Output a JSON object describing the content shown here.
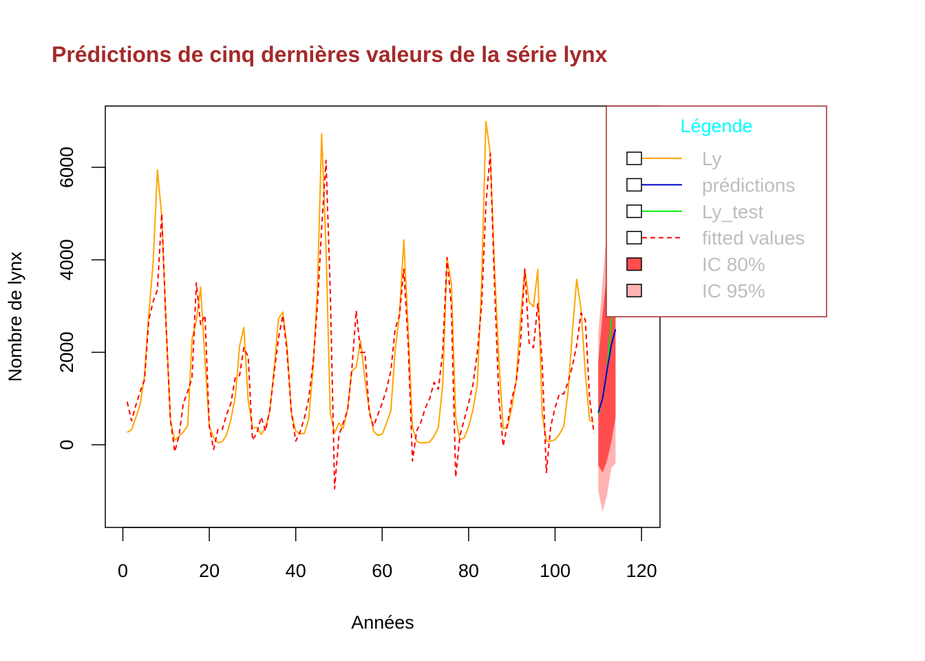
{
  "chart_data": {
    "type": "line",
    "title": "Prédictions de cinq dernières valeurs de la série lynx",
    "xlabel": "Années",
    "ylabel": "Nombre de lynx",
    "xlim": [
      0,
      125
    ],
    "ylim": [
      -1800,
      7300
    ],
    "xticks": [
      "0",
      "20",
      "40",
      "60",
      "80",
      "100",
      "120"
    ],
    "yticks": [
      "0",
      "2000",
      "4000",
      "6000"
    ],
    "grid": false,
    "legend_position": "top-right",
    "legend_title": "Légende",
    "colors": {
      "title": "#a52a2a",
      "ly": "#ffa500",
      "predictions": "#0000cd",
      "ly_test": "#00ee00",
      "fitted": "#ff0000",
      "ic80": "#ff4d4d",
      "ic95": "#ffb3b3",
      "legend_title": "#00ffff",
      "legend_text": "#bebebe",
      "legend_border": "#a52a2a"
    },
    "legend": [
      {
        "label": "Ly",
        "kind": "line",
        "color": "#ffa500",
        "dash": false
      },
      {
        "label": "prédictions",
        "kind": "line",
        "color": "#0000cd",
        "dash": false
      },
      {
        "label": "Ly_test",
        "kind": "line",
        "color": "#00ee00",
        "dash": false
      },
      {
        "label": "fitted values",
        "kind": "line",
        "color": "#ff0000",
        "dash": true
      },
      {
        "label": "IC 80%",
        "kind": "fill",
        "color": "#ff4d4d"
      },
      {
        "label": "IC 95%",
        "kind": "fill",
        "color": "#ffb3b3"
      }
    ],
    "series": [
      {
        "name": "Ly",
        "x_start": 1,
        "values": [
          269,
          321,
          585,
          871,
          1475,
          2821,
          3928,
          5943,
          4950,
          2577,
          523,
          98,
          184,
          279,
          409,
          2285,
          2685,
          3409,
          1824,
          409,
          151,
          45,
          68,
          213,
          546,
          1033,
          2129,
          2536,
          957,
          361,
          377,
          225,
          360,
          731,
          1638,
          2725,
          2871,
          2119,
          684,
          299,
          236,
          245,
          552,
          1623,
          3311,
          6721,
          4254,
          687,
          255,
          473,
          358,
          784,
          1594,
          1676,
          2251,
          1426,
          756,
          299,
          201,
          229,
          469,
          736,
          2042,
          2811,
          4431,
          2511,
          389,
          73,
          39,
          49,
          59,
          188,
          377,
          1292,
          4031,
          3495,
          587,
          105,
          153,
          387,
          758,
          1307,
          3465,
          6991,
          6313,
          3794,
          1836,
          345,
          382,
          808,
          1388,
          2713,
          3800,
          3091,
          2985,
          3790,
          674,
          81,
          80,
          108,
          229,
          399,
          1132,
          2432,
          3574,
          2935,
          1537,
          529,
          485
        ]
      },
      {
        "name": "fitted values",
        "x_start": 1,
        "values": [
          930,
          520,
          850,
          1150,
          1400,
          2700,
          3100,
          3350,
          5000,
          2600,
          550,
          -150,
          200,
          900,
          1150,
          1450,
          3500,
          2600,
          2800,
          400,
          -100,
          330,
          330,
          650,
          900,
          1450,
          1500,
          2100,
          1900,
          100,
          250,
          600,
          300,
          750,
          1550,
          2300,
          2800,
          2000,
          700,
          80,
          280,
          580,
          1000,
          1750,
          3000,
          4700,
          6150,
          3300,
          -950,
          200,
          480,
          750,
          1650,
          2900,
          2000,
          2000,
          700,
          400,
          650,
          900,
          1200,
          1600,
          2500,
          2800,
          3800,
          2200,
          -350,
          300,
          500,
          800,
          1000,
          1350,
          1200,
          2000,
          4050,
          3000,
          -700,
          200,
          550,
          900,
          1300,
          2000,
          3000,
          5200,
          6300,
          3400,
          1000,
          -30,
          450,
          1000,
          1350,
          2200,
          3800,
          2200,
          2100,
          3050,
          1800,
          -600,
          400,
          800,
          1100,
          1100,
          1350,
          1700,
          2150,
          2850,
          2700,
          1000,
          250
        ]
      },
      {
        "name": "Ly_test",
        "x_start": 110,
        "values": [
          662,
          1000,
          1590,
          2657,
          3396
        ]
      },
      {
        "name": "prédictions",
        "x_start": 110,
        "values": [
          700,
          1000,
          1600,
          2150,
          2500
        ]
      }
    ],
    "intervals": [
      {
        "name": "IC 95%",
        "x_start": 110,
        "lower": [
          -1000,
          -1450,
          -1100,
          -500,
          -400
        ],
        "upper": [
          2400,
          3550,
          4700,
          5600,
          6700
        ]
      },
      {
        "name": "IC 80%",
        "x_start": 110,
        "lower": [
          -450,
          -600,
          -350,
          50,
          600
        ],
        "upper": [
          1800,
          2850,
          3700,
          4300,
          5100
        ]
      }
    ]
  }
}
